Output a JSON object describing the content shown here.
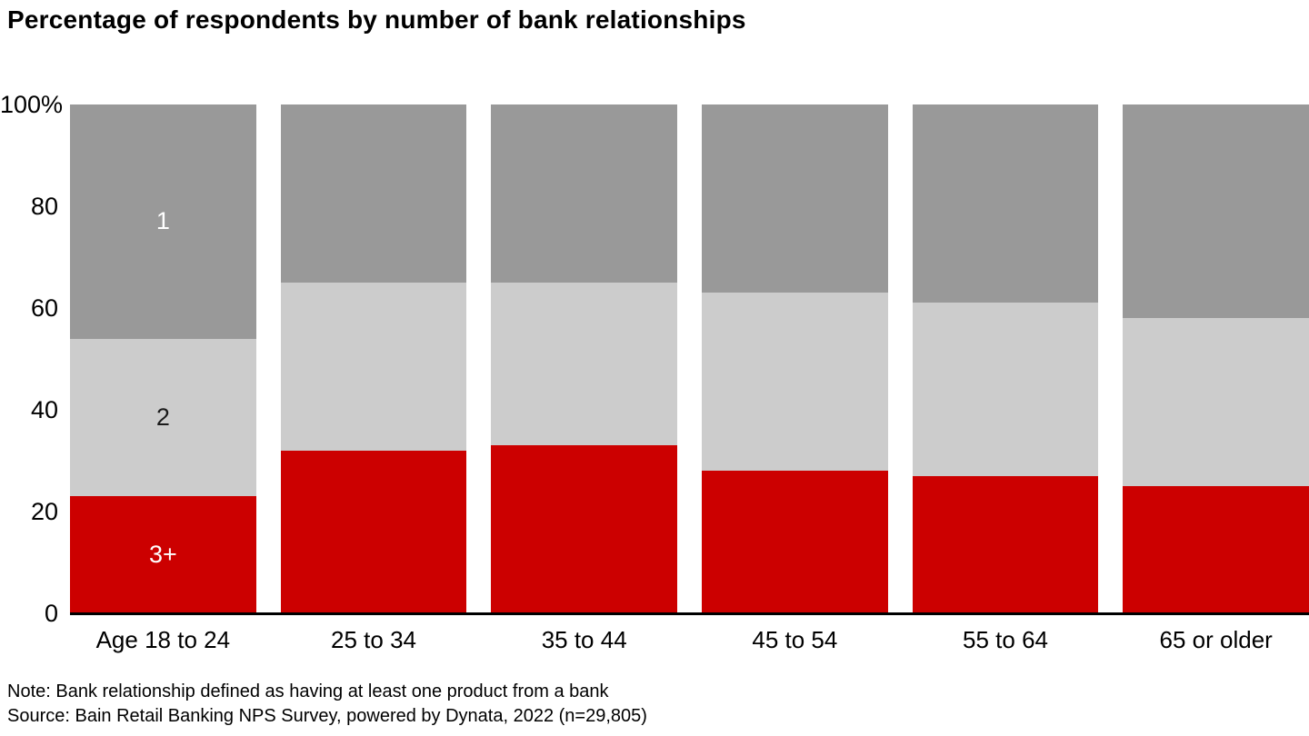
{
  "title": "Percentage of respondents by number of bank relationships",
  "footer": {
    "note": "Note: Bank relationship defined as having at least one product from a bank",
    "source": "Source: Bain Retail Banking NPS Survey, powered by Dynata, 2022 (n=29,805)"
  },
  "colors": {
    "one_segment": "#999999",
    "two_segment": "#cccccc",
    "three_plus_segment": "#cc0000",
    "axis_line": "#000000",
    "text": "#000000"
  },
  "chart_data": {
    "type": "bar",
    "stacked": true,
    "orientation": "vertical",
    "title": "Percentage of respondents by number of bank relationships",
    "categories": [
      "Age 18 to 24",
      "25 to 34",
      "35 to 44",
      "45 to 54",
      "55 to 64",
      "65 or older"
    ],
    "series": [
      {
        "name": "1",
        "color": "#999999",
        "label_color": "#ffffff",
        "values": [
          46,
          35,
          35,
          37,
          39,
          42
        ]
      },
      {
        "name": "2",
        "color": "#cccccc",
        "label_color": "#1a1a1a",
        "values": [
          31,
          33,
          32,
          35,
          34,
          33
        ]
      },
      {
        "name": "3+",
        "color": "#cc0000",
        "label_color": "#ffffff",
        "values": [
          23,
          32,
          33,
          28,
          27,
          25
        ]
      }
    ],
    "segment_labels_shown_on_first_bar_only": true,
    "xlabel": "",
    "ylabel": "",
    "ylim": [
      0,
      100
    ],
    "y_ticks": [
      {
        "label": "100%",
        "value": 100
      },
      {
        "label": "80",
        "value": 80
      },
      {
        "label": "60",
        "value": 60
      },
      {
        "label": "40",
        "value": 40
      },
      {
        "label": "20",
        "value": 20
      },
      {
        "label": "0",
        "value": 0
      }
    ],
    "grid": false,
    "legend": "none"
  }
}
